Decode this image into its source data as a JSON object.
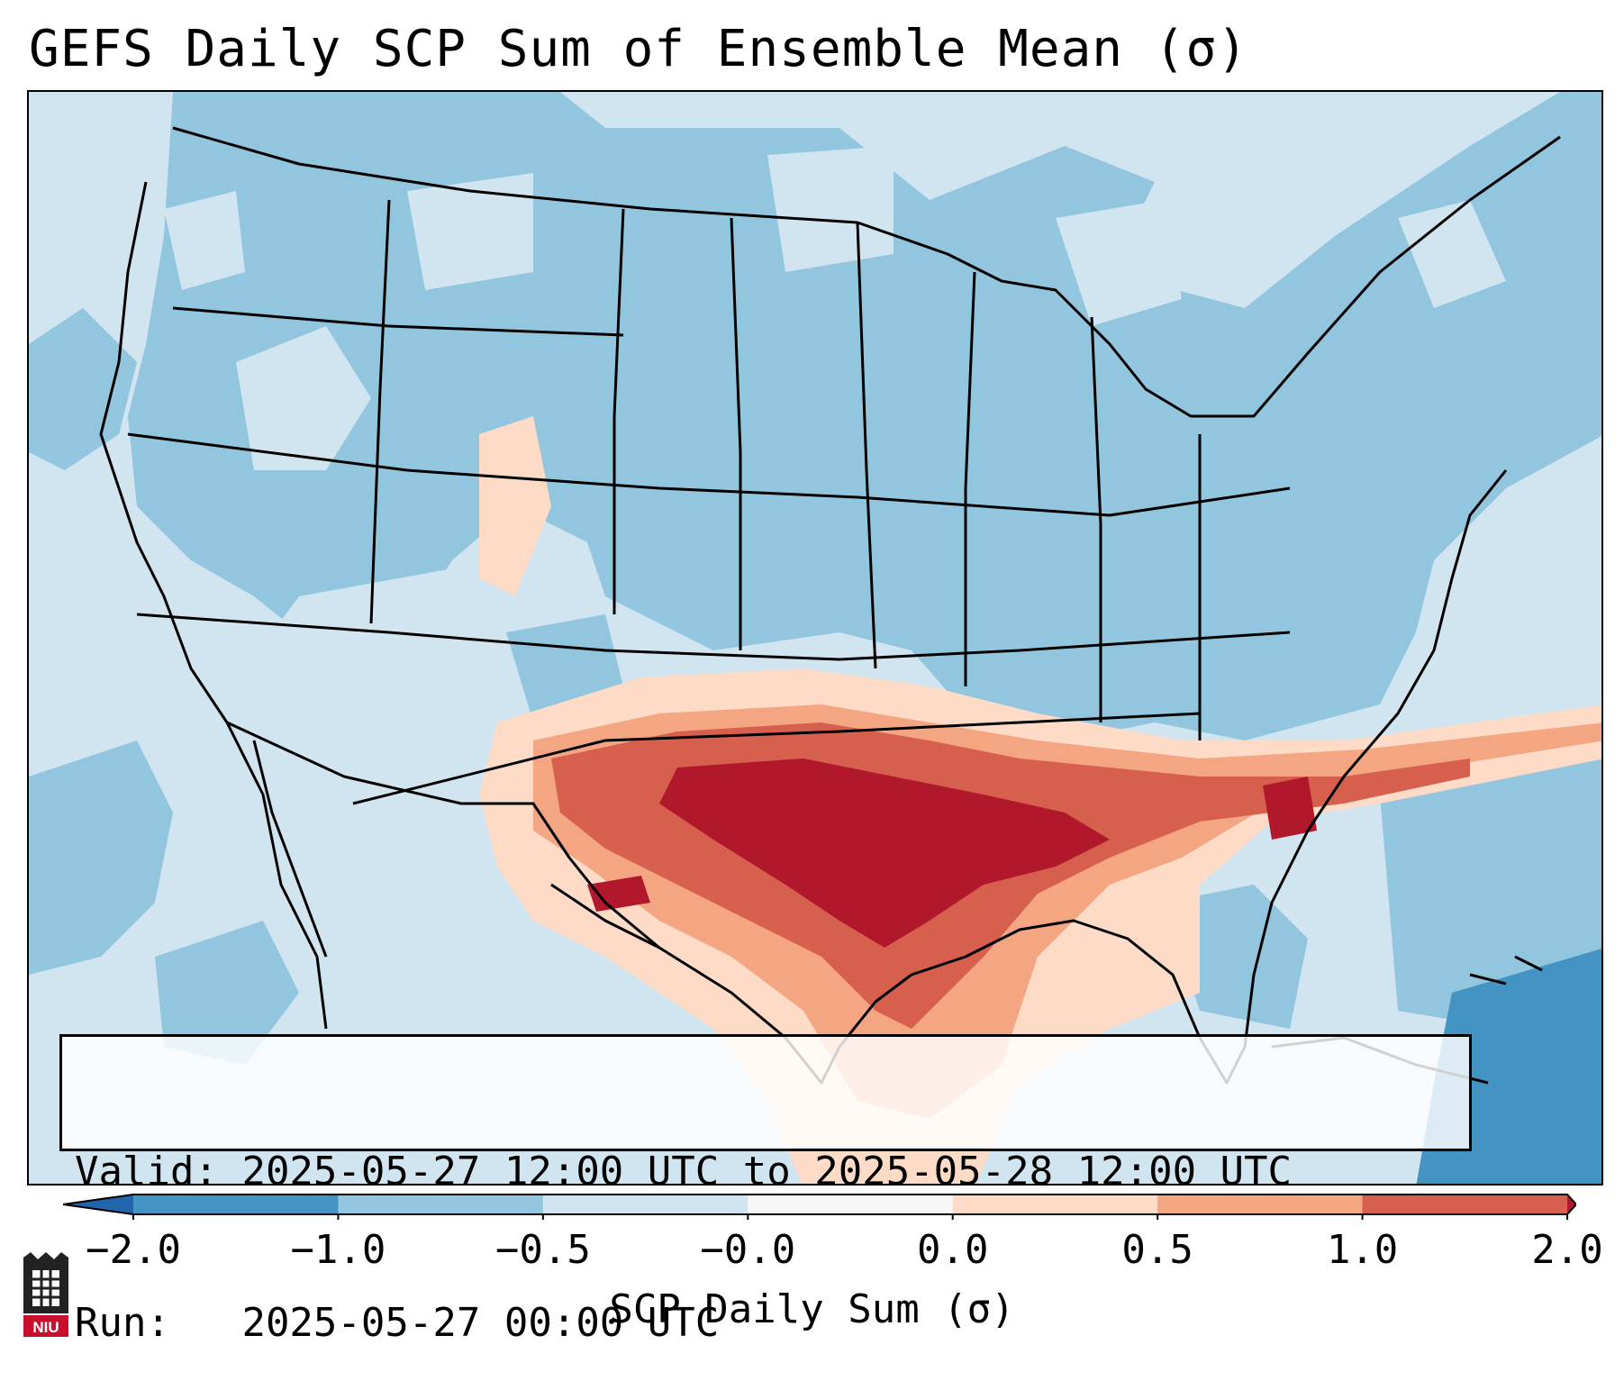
{
  "title": "GEFS Daily SCP Sum of Ensemble Mean (σ)",
  "info": {
    "valid_label": "Valid:",
    "valid_value": "2025-05-27 12:00 UTC to 2025-05-28 12:00 UTC",
    "run_label": "Run:",
    "run_value": "2025-05-27 00:00 UTC"
  },
  "colorbar": {
    "label": "SCP Daily Sum (σ)",
    "ticks": [
      "−2.0",
      "−1.0",
      "−0.5",
      "−0.0",
      "0.0",
      "0.5",
      "1.0",
      "2.0"
    ],
    "bins": [
      {
        "range": "< -2.0",
        "color": "#2166ac"
      },
      {
        "range": "-2.0 to -1.0",
        "color": "#4393c3"
      },
      {
        "range": "-1.0 to -0.5",
        "color": "#92c5de"
      },
      {
        "range": "-0.5 to -0.0",
        "color": "#d1e5f0"
      },
      {
        "range": "-0.0 to 0.0",
        "color": "#f7f7f7"
      },
      {
        "range": "0.0 to 0.5",
        "color": "#fddbc7"
      },
      {
        "range": "0.5 to 1.0",
        "color": "#f4a582"
      },
      {
        "range": "1.0 to 2.0",
        "color": "#d6604d"
      },
      {
        "range": "> 2.0",
        "color": "#b2182b"
      }
    ]
  },
  "logo_text": "NIU",
  "colors": {
    "neg_strong": "#4393c3",
    "neg_mid": "#92c5de",
    "neg_weak": "#d1e5f0",
    "pos_weak": "#fddbc7",
    "pos_mid": "#f4a582",
    "pos_strong": "#d6604d",
    "pos_max": "#b2182b",
    "logo_red": "#c8102e"
  }
}
